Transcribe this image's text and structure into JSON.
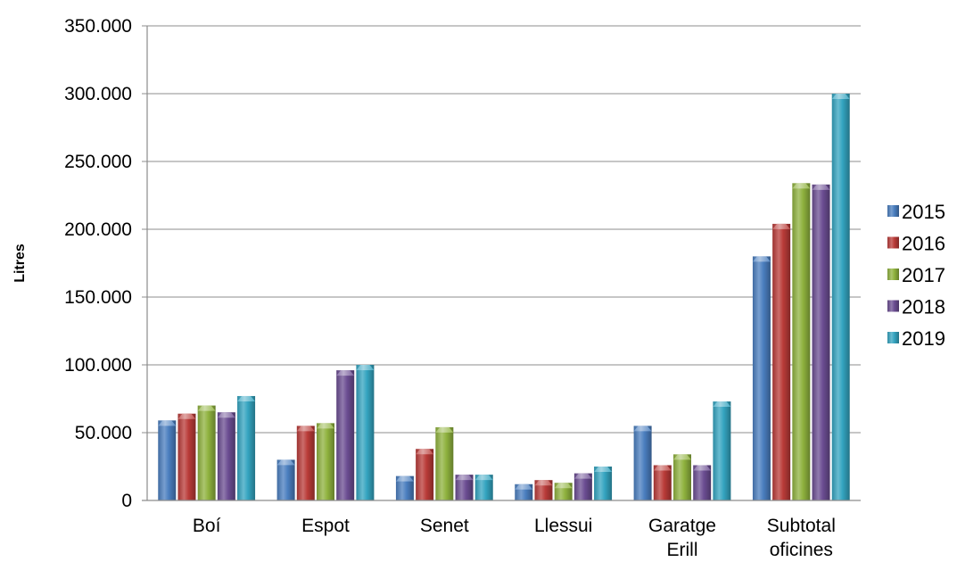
{
  "chart_data": {
    "type": "bar",
    "title": "",
    "xlabel": "",
    "ylabel": "Litres",
    "ylim": [
      0,
      350000
    ],
    "yticks": [
      0,
      50000,
      100000,
      150000,
      200000,
      250000,
      300000,
      350000
    ],
    "ytick_labels": [
      "0",
      "50.000",
      "100.000",
      "150.000",
      "200.000",
      "250.000",
      "300.000",
      "350.000"
    ],
    "grid": true,
    "legend_position": "right",
    "categories": [
      [
        "Boí"
      ],
      [
        "Espot"
      ],
      [
        "Senet"
      ],
      [
        "Llessui"
      ],
      [
        "Garatge",
        "Erill"
      ],
      [
        "Subtotal",
        "oficines"
      ]
    ],
    "series": [
      {
        "name": "2015",
        "color": "#4a7ebf",
        "values": [
          59000,
          30000,
          18000,
          12000,
          55000,
          180000
        ]
      },
      {
        "name": "2016",
        "color": "#b93b38",
        "values": [
          64000,
          55000,
          38000,
          15000,
          26000,
          204000
        ]
      },
      {
        "name": "2017",
        "color": "#8fb23e",
        "values": [
          70000,
          57000,
          54000,
          13000,
          34000,
          234000
        ]
      },
      {
        "name": "2018",
        "color": "#6b4d92",
        "values": [
          65000,
          96000,
          19000,
          20000,
          26000,
          233000
        ]
      },
      {
        "name": "2019",
        "color": "#34a4c0",
        "values": [
          77000,
          100000,
          19000,
          25000,
          73000,
          300000
        ]
      }
    ]
  }
}
